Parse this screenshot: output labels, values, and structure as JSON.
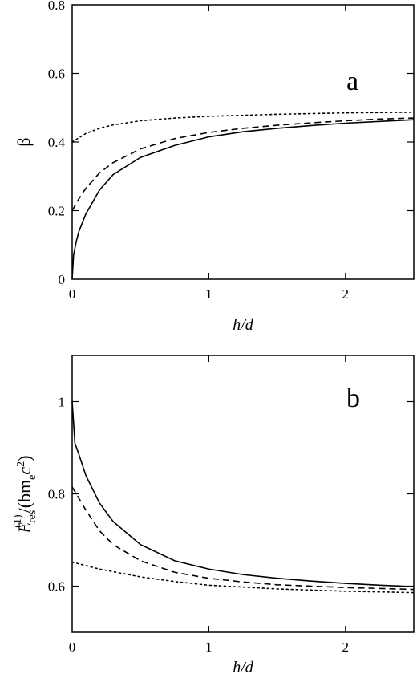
{
  "chart_data": [
    {
      "type": "line",
      "panel": "a",
      "xlabel": "h/d",
      "ylabel": "β",
      "xlim": [
        0,
        2.5
      ],
      "ylim": [
        0,
        0.8
      ],
      "xticks": [
        "0",
        "1",
        "2"
      ],
      "yticks": [
        "0",
        "0.2",
        "0.4",
        "0.6",
        "0.8"
      ],
      "grid": false,
      "series": [
        {
          "style": "solid",
          "x": [
            0,
            0.01,
            0.03,
            0.05,
            0.1,
            0.2,
            0.3,
            0.5,
            0.75,
            1.0,
            1.25,
            1.5,
            1.75,
            2.0,
            2.25,
            2.5
          ],
          "y": [
            0,
            0.07,
            0.11,
            0.14,
            0.19,
            0.26,
            0.305,
            0.355,
            0.39,
            0.415,
            0.43,
            0.44,
            0.448,
            0.455,
            0.46,
            0.465
          ]
        },
        {
          "style": "dashed",
          "x": [
            0,
            0.05,
            0.1,
            0.2,
            0.3,
            0.5,
            0.75,
            1.0,
            1.25,
            1.5,
            1.75,
            2.0,
            2.25,
            2.5
          ],
          "y": [
            0.2,
            0.235,
            0.265,
            0.31,
            0.34,
            0.38,
            0.41,
            0.428,
            0.44,
            0.449,
            0.456,
            0.462,
            0.467,
            0.47
          ],
          "dash": "8,5"
        },
        {
          "style": "dotted",
          "x": [
            0,
            0.1,
            0.2,
            0.3,
            0.5,
            0.75,
            1.0,
            1.5,
            2.0,
            2.5
          ],
          "y": [
            0.4,
            0.425,
            0.44,
            0.45,
            0.462,
            0.47,
            0.475,
            0.481,
            0.485,
            0.487
          ],
          "dash": "2,4"
        }
      ]
    },
    {
      "type": "line",
      "panel": "b",
      "xlabel": "h/d",
      "ylabel": "E_res^(1)/(b m_e c^2)",
      "xlim": [
        0,
        2.5
      ],
      "ylim": [
        0.5,
        1.1
      ],
      "xticks": [
        "0",
        "1",
        "2"
      ],
      "yticks": [
        "0.6",
        "0.8",
        "1"
      ],
      "grid": false,
      "series": [
        {
          "style": "solid",
          "x": [
            0,
            0.02,
            0.05,
            0.1,
            0.2,
            0.3,
            0.5,
            0.75,
            1.0,
            1.25,
            1.5,
            1.75,
            2.0,
            2.25,
            2.5
          ],
          "y": [
            1.0,
            0.91,
            0.885,
            0.84,
            0.78,
            0.74,
            0.69,
            0.655,
            0.637,
            0.625,
            0.617,
            0.611,
            0.606,
            0.602,
            0.599
          ]
        },
        {
          "style": "dashed",
          "x": [
            0,
            0.05,
            0.1,
            0.2,
            0.3,
            0.5,
            0.75,
            1.0,
            1.25,
            1.5,
            1.75,
            2.0,
            2.25,
            2.5
          ],
          "y": [
            0.815,
            0.79,
            0.765,
            0.72,
            0.69,
            0.655,
            0.63,
            0.617,
            0.609,
            0.603,
            0.6,
            0.597,
            0.595,
            0.593
          ],
          "dash": "8,5"
        },
        {
          "style": "dotted",
          "x": [
            0,
            0.2,
            0.5,
            0.75,
            1.0,
            1.5,
            2.0,
            2.5
          ],
          "y": [
            0.652,
            0.637,
            0.62,
            0.61,
            0.602,
            0.594,
            0.589,
            0.586
          ],
          "dash": "2,4"
        }
      ]
    }
  ],
  "labels": {
    "panel_a_letter": "a",
    "panel_b_letter": "b",
    "panel_a_xlabel": "h/d",
    "panel_b_xlabel": "h/d",
    "panel_a_ylabel": "β",
    "panel_b_ylabel_E": "E",
    "panel_b_ylabel_sup": "(1)",
    "panel_b_ylabel_sub": "res",
    "panel_b_ylabel_mid": "/(bm",
    "panel_b_ylabel_e": "e",
    "panel_b_ylabel_c": "c",
    "panel_b_ylabel_c_sup": "2",
    "panel_b_ylabel_close": ")"
  }
}
